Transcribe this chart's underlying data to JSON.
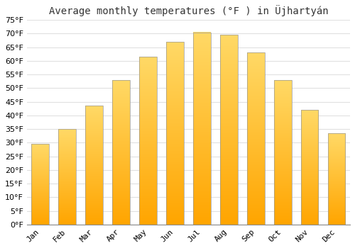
{
  "title": "Average monthly temperatures (°F ) in Üjhartyán",
  "months": [
    "Jan",
    "Feb",
    "Mar",
    "Apr",
    "May",
    "Jun",
    "Jul",
    "Aug",
    "Sep",
    "Oct",
    "Nov",
    "Dec"
  ],
  "values": [
    29.5,
    35.0,
    43.5,
    53.0,
    61.5,
    67.0,
    70.5,
    69.5,
    63.0,
    53.0,
    42.0,
    33.5
  ],
  "bar_color_bottom": "#FFA500",
  "bar_color_top": "#FFD966",
  "bar_edge_color": "#B8860B",
  "ylim": [
    0,
    75
  ],
  "yticks": [
    0,
    5,
    10,
    15,
    20,
    25,
    30,
    35,
    40,
    45,
    50,
    55,
    60,
    65,
    70,
    75
  ],
  "background_color": "#ffffff",
  "grid_color": "#e0e0e0",
  "title_fontsize": 10,
  "tick_fontsize": 8,
  "bar_width": 0.65
}
